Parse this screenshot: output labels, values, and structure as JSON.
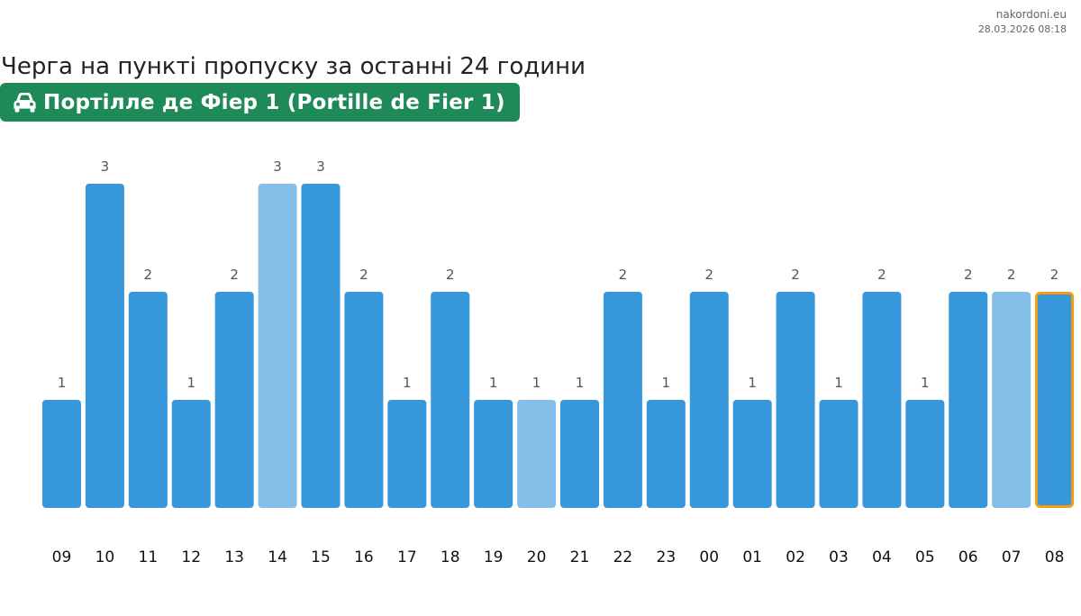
{
  "site": {
    "domain": "nakordoni.eu",
    "timestamp": "28.03.2026 08:18"
  },
  "header": {
    "title": "Черга на пункті пропуску за останні 24 години",
    "checkpoint_badge": "Портілле де Фіер 1 (Portille de Fier 1)",
    "badge_icon": "car-icon",
    "badge_color": "#1e8a57"
  },
  "chart_data": {
    "type": "bar",
    "title": "",
    "xlabel": "",
    "ylabel": "",
    "categories": [
      "09",
      "10",
      "11",
      "12",
      "13",
      "14",
      "15",
      "16",
      "17",
      "18",
      "19",
      "20",
      "21",
      "22",
      "23",
      "00",
      "01",
      "02",
      "03",
      "04",
      "05",
      "06",
      "07",
      "08"
    ],
    "values": [
      1,
      3,
      2,
      1,
      2,
      3,
      3,
      2,
      1,
      2,
      1,
      1,
      1,
      2,
      1,
      2,
      1,
      2,
      1,
      2,
      1,
      2,
      2,
      2
    ],
    "lighter_bars": [
      "14",
      "20",
      "07"
    ],
    "highlighted": "08",
    "ylim": [
      0,
      3
    ],
    "grid": false,
    "data_labels": true,
    "colors": {
      "bar": "#3797db",
      "bar_light": "#85bfe9",
      "highlight_border": "#f39c12"
    }
  }
}
